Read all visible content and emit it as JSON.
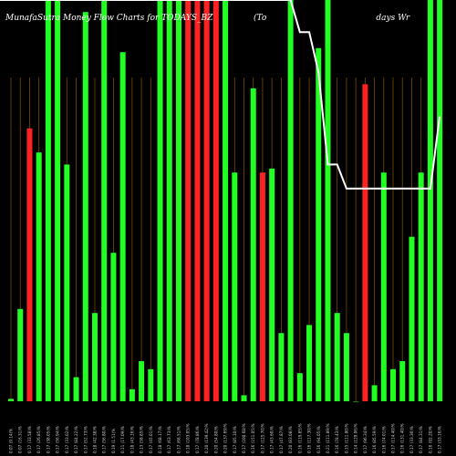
{
  "chart_data": {
    "type": "bar",
    "title_left": "MunafaSutra Money Flow Charts for TODAYS_BZ",
    "title_right": "(To                                          days Wr",
    "categories": [
      "0.07 (9.14)%",
      "0.07 (16.31)%",
      "0.17 (33.58)%",
      "0.17 (26.85)%",
      "0.17 (38.05)%",
      "0.17 (56.94)%",
      "0.17 (33.02)%",
      "0.17 (84.22)%",
      "0.17 (52.73)%",
      "0.18 (42.38)%",
      "0.17 (56.80)%",
      "0.19 (1.51)%",
      "0.11 (17.09)%",
      "0.18 (43.16)%",
      "0.13 (58.85)%",
      "0.17 (45.01)%",
      "0.18 (68.17)%",
      "0.17 (63.73)%",
      "0.17 (68.51)%",
      "0.18 (103.05)%",
      "0.17 (78.86)%",
      "0.20 (139.42)%",
      "0.20 (54.80)%",
      "0.20 (137.69)%",
      "0.17 (85.10)%",
      "0.17 (100.68)%",
      "0.16 (151.05)%",
      "0.17 (125.70)%",
      "0.17 (43.60)%",
      "0.17 (47.87)%",
      "0.20 (83.08)%",
      "0.16 (119.85)%",
      "0.16 (117.30)%",
      "0.16 (94.05)%",
      "0.21 (111.89)%",
      "0.16 (78.43)%",
      "0.15 (111.80)%",
      "0.14 (129.06)%",
      "0.17 (96.34)%",
      "0.16 (85.59)%",
      "0.16 (74.01)%",
      "0.17 (114.40)%",
      "0.16 (131.40)%",
      "0.17 (33.30)%",
      "0.17 (84.31)%",
      "0.16 (92.20)%",
      "0.17 (33.16)%"
    ],
    "bar_colors": [
      "green",
      "green",
      "red",
      "green",
      "green",
      "green",
      "green",
      "green",
      "green",
      "green",
      "green",
      "green",
      "green",
      "green",
      "green",
      "green",
      "green",
      "green",
      "green",
      "red",
      "red",
      "red",
      "red",
      "green",
      "green",
      "green",
      "green",
      "red",
      "green",
      "green",
      "green",
      "green",
      "green",
      "green",
      "green",
      "green",
      "green",
      "green",
      "red",
      "green",
      "green",
      "green",
      "green",
      "green",
      "green",
      "green",
      "green"
    ],
    "values": [
      0.6,
      23,
      68,
      62,
      100,
      100,
      59,
      6,
      97,
      22,
      100,
      37,
      87,
      3,
      10,
      8,
      100,
      100,
      100,
      100,
      100,
      100,
      100,
      100,
      57,
      1.5,
      78,
      57,
      58,
      17,
      100,
      7,
      19,
      88,
      100,
      22,
      17,
      0,
      79,
      4,
      57,
      8,
      10,
      41,
      57,
      100,
      100
    ],
    "line_values": [
      100,
      100,
      100,
      100,
      100,
      100,
      100,
      100,
      100,
      100,
      100,
      100,
      100,
      100,
      100,
      100,
      100,
      100,
      100,
      100,
      100,
      100,
      100,
      100,
      100,
      100,
      100,
      100,
      100,
      100,
      100,
      92,
      92,
      82,
      59,
      59,
      53,
      53,
      53,
      53,
      53,
      53,
      53,
      53,
      53,
      53,
      71
    ],
    "ylim": [
      0,
      100
    ],
    "colors": {
      "green": "#22ff22",
      "red": "#ff2222",
      "line": "#ffffff",
      "grid": "#7a4a00",
      "background": "#000000"
    }
  }
}
